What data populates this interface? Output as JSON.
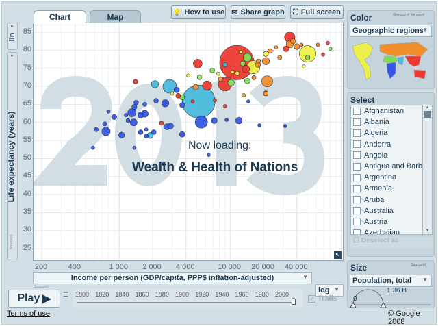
{
  "tabs": [
    {
      "label": "Chart",
      "active": true
    },
    {
      "label": "Map",
      "active": false
    }
  ],
  "toolbar": {
    "how_to_use": "How to use",
    "share_graph": "Share graph",
    "full_screen": "Full screen"
  },
  "y_axis": {
    "scale": "lin",
    "label": "Life expectancy (years)",
    "ticks": [
      "85",
      "80",
      "75",
      "70",
      "65",
      "60",
      "55",
      "50",
      "45",
      "40",
      "35",
      "30",
      "25"
    ],
    "source": "Source(s)"
  },
  "x_axis": {
    "label": "Income per person (GDP/capita, PPP$ inflation-adjusted)",
    "scale": "log",
    "ticks": [
      "200",
      "400",
      "1 000",
      "2 000",
      "4 000",
      "10 000",
      "20 000",
      "40 000"
    ],
    "source": "Source(s)"
  },
  "watermark_year": "2013",
  "loading": {
    "line1": "Now loading:",
    "line2": "Wealth & Health of Nations"
  },
  "play": {
    "label": "Play",
    "years": [
      "1800",
      "1820",
      "1840",
      "1860",
      "1880",
      "1900",
      "1920",
      "1940",
      "1960",
      "1980",
      "2000"
    ],
    "trails": "Trails",
    "trails_checked": true,
    "current_year": 2013
  },
  "color_panel": {
    "title": "Color",
    "subtitle": "Regions of the world",
    "selected": "Geographic regions",
    "colors": {
      "sub_saharan_africa": "#3457e6",
      "south_asia": "#4bb9dc",
      "east_asia_pacific": "#ec3a32",
      "america": "#eef04a",
      "europe_central_asia": "#f28d2c",
      "middle_east_north_africa": "#7ddf58"
    }
  },
  "select_panel": {
    "title": "Select",
    "countries": [
      "Afghanistan",
      "Albania",
      "Algeria",
      "Andorra",
      "Angola",
      "Antigua and Barb...",
      "Argentina",
      "Armenia",
      "Aruba",
      "Australia",
      "Austria",
      "Azerbaijan",
      "Bahamas"
    ],
    "deselect_all": "Deselect all"
  },
  "size_panel": {
    "title": "Size",
    "source": "Source(s)",
    "selected": "Population, total",
    "min": "0",
    "max": "1.36 B"
  },
  "footer": {
    "terms": "Terms of use",
    "copyright": "© Google 2008"
  },
  "chart_data": {
    "type": "scatter",
    "xlabel": "Income per person (GDP/capita, PPP$ inflation-adjusted)",
    "ylabel": "Life expectancy (years)",
    "x_scale": "log",
    "xlim": [
      150,
      110000
    ],
    "ylim": [
      20,
      87.5
    ],
    "grid": true,
    "fields": [
      "income",
      "life_expectancy",
      "population_millions",
      "region"
    ],
    "points": [
      [
        11500,
        76.6,
        1360,
        "east_asia_pacific"
      ],
      [
        5200,
        65.8,
        1250,
        "south_asia"
      ],
      [
        50000,
        79,
        316,
        "america"
      ],
      [
        2850,
        70,
        216,
        "south_asia"
      ],
      [
        5500,
        60.1,
        175,
        "sub_saharan_africa"
      ],
      [
        9000,
        70.6,
        216,
        "east_asia_pacific"
      ],
      [
        21600,
        71.4,
        140,
        "europe_central_asia"
      ],
      [
        34500,
        83.6,
        127,
        "east_asia_pacific"
      ],
      [
        16200,
        75.3,
        200,
        "america"
      ],
      [
        2100,
        70.6,
        60,
        "south_asia"
      ],
      [
        6200,
        70.2,
        100,
        "east_asia_pacific"
      ],
      [
        5100,
        76.3,
        90,
        "east_asia_pacific"
      ],
      [
        14300,
        78,
        80,
        "middle_east_north_africa"
      ],
      [
        21000,
        77,
        60,
        "europe_central_asia"
      ],
      [
        13900,
        74.8,
        60,
        "east_asia_pacific"
      ],
      [
        760,
        57.5,
        80,
        "sub_saharan_africa"
      ],
      [
        1300,
        62.7,
        80,
        "sub_saharan_africa"
      ],
      [
        12000,
        60.5,
        50,
        "sub_saharan_africa"
      ],
      [
        7200,
        60.5,
        40,
        "sub_saharan_africa"
      ],
      [
        1350,
        60,
        55,
        "sub_saharan_africa"
      ],
      [
        2700,
        58.8,
        45,
        "sub_saharan_africa"
      ],
      [
        2900,
        59,
        40,
        "sub_saharan_africa"
      ],
      [
        1560,
        62,
        40,
        "sub_saharan_africa"
      ],
      [
        1700,
        62.4,
        55,
        "sub_saharan_africa"
      ],
      [
        1050,
        56.5,
        40,
        "sub_saharan_africa"
      ],
      [
        3700,
        56.7,
        35,
        "sub_saharan_africa"
      ],
      [
        2600,
        65.3,
        60,
        "sub_saharan_africa"
      ],
      [
        3300,
        69,
        35,
        "sub_saharan_africa"
      ],
      [
        1900,
        56.4,
        40,
        "south_asia"
      ],
      [
        4900,
        69.8,
        35,
        "europe_central_asia"
      ],
      [
        10200,
        71,
        50,
        "middle_east_north_africa"
      ],
      [
        14300,
        71.5,
        35,
        "middle_east_north_africa"
      ],
      [
        21000,
        68.1,
        25,
        "europe_central_asia"
      ],
      [
        34500,
        81.7,
        60,
        "europe_central_asia"
      ],
      [
        32000,
        80.4,
        40,
        "east_asia_pacific"
      ],
      [
        40000,
        81,
        40,
        "europe_central_asia"
      ],
      [
        37000,
        82.5,
        30,
        "europe_central_asia"
      ],
      [
        50000,
        78,
        25,
        "middle_east_north_africa"
      ],
      [
        23000,
        79.8,
        25,
        "europe_central_asia"
      ],
      [
        21000,
        79,
        30,
        "america"
      ],
      [
        28000,
        78,
        20,
        "europe_central_asia"
      ],
      [
        9000,
        76,
        20,
        "south_asia"
      ],
      [
        17800,
        76,
        35,
        "europe_central_asia"
      ],
      [
        13000,
        76.3,
        30,
        "middle_east_north_africa"
      ],
      [
        11600,
        73.6,
        20,
        "america"
      ],
      [
        18000,
        77,
        20,
        "europe_central_asia"
      ],
      [
        6900,
        74.4,
        25,
        "middle_east_north_africa"
      ],
      [
        5300,
        72.5,
        25,
        "middle_east_north_africa"
      ],
      [
        8200,
        72,
        25,
        "europe_central_asia"
      ],
      [
        16400,
        72.4,
        20,
        "europe_central_asia"
      ],
      [
        1400,
        71.3,
        25,
        "east_asia_pacific"
      ],
      [
        3400,
        67.4,
        25,
        "east_asia_pacific"
      ],
      [
        3700,
        67,
        30,
        "middle_east_north_africa"
      ],
      [
        2400,
        59.8,
        20,
        "east_asia_pacific"
      ],
      [
        620,
        58,
        20,
        "sub_saharan_africa"
      ],
      [
        740,
        59.6,
        20,
        "sub_saharan_africa"
      ],
      [
        800,
        63,
        12,
        "sub_saharan_africa"
      ],
      [
        900,
        61.5,
        30,
        "sub_saharan_africa"
      ],
      [
        1150,
        62,
        15,
        "sub_saharan_africa"
      ],
      [
        1200,
        60.5,
        20,
        "sub_saharan_africa"
      ],
      [
        1370,
        64.3,
        30,
        "sub_saharan_africa"
      ],
      [
        1420,
        65.5,
        25,
        "sub_saharan_africa"
      ],
      [
        1560,
        57.3,
        25,
        "sub_saharan_africa"
      ],
      [
        1700,
        65,
        20,
        "sub_saharan_africa"
      ],
      [
        1750,
        58,
        15,
        "sub_saharan_africa"
      ],
      [
        1750,
        56.2,
        20,
        "sub_saharan_africa"
      ],
      [
        2050,
        57.3,
        25,
        "sub_saharan_africa"
      ],
      [
        2150,
        66,
        25,
        "sub_saharan_africa"
      ],
      [
        3700,
        64.8,
        30,
        "sub_saharan_africa"
      ],
      [
        580,
        53,
        10,
        "sub_saharan_africa"
      ],
      [
        1370,
        53,
        6,
        "sub_saharan_africa"
      ],
      [
        2500,
        48.5,
        6,
        "sub_saharan_africa"
      ],
      [
        9300,
        60.7,
        10,
        "sub_saharan_africa"
      ],
      [
        14600,
        65.8,
        8,
        "sub_saharan_africa"
      ],
      [
        18400,
        59.2,
        8,
        "sub_saharan_africa"
      ],
      [
        31300,
        59,
        6,
        "sub_saharan_africa"
      ],
      [
        6400,
        51,
        6,
        "sub_saharan_africa"
      ],
      [
        4600,
        65.8,
        10,
        "east_asia_pacific"
      ],
      [
        9000,
        64.5,
        12,
        "east_asia_pacific"
      ],
      [
        7300,
        66.1,
        6,
        "east_asia_pacific"
      ],
      [
        13300,
        67.5,
        15,
        "europe_central_asia"
      ],
      [
        21000,
        68,
        25,
        "europe_central_asia"
      ],
      [
        80000,
        80.4,
        8,
        "middle_east_north_africa"
      ],
      [
        76000,
        82,
        10,
        "east_asia_pacific"
      ],
      [
        62000,
        81.5,
        10,
        "europe_central_asia"
      ],
      [
        69000,
        78.8,
        5,
        "east_asia_pacific"
      ],
      [
        46000,
        75.5,
        5,
        "america"
      ],
      [
        3000,
        68,
        8,
        "america"
      ],
      [
        4200,
        73,
        10,
        "america"
      ],
      [
        7800,
        73.5,
        10,
        "america"
      ],
      [
        10500,
        74,
        12,
        "america"
      ],
      [
        12500,
        79.5,
        8,
        "america"
      ],
      [
        26000,
        80.8,
        10,
        "europe_central_asia"
      ],
      [
        44000,
        81.5,
        12,
        "europe_central_asia"
      ]
    ]
  }
}
